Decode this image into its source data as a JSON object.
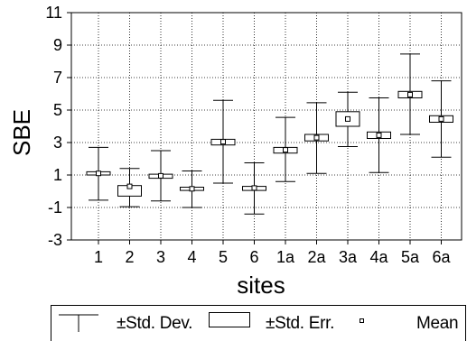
{
  "chart_data": {
    "type": "box",
    "title": "",
    "xlabel": "sites",
    "ylabel": "SBE",
    "ylim": [
      -3,
      11
    ],
    "yticks": [
      -3,
      -1,
      1,
      3,
      5,
      7,
      9,
      11
    ],
    "grid": true,
    "categories": [
      "1",
      "2",
      "3",
      "4",
      "5",
      "6",
      "1a",
      "2a",
      "3a",
      "4a",
      "5a",
      "6a"
    ],
    "series": [
      {
        "name": "Mean",
        "values": [
          1.1,
          0.3,
          0.95,
          0.15,
          3.05,
          0.2,
          2.55,
          3.3,
          4.45,
          3.45,
          5.95,
          4.45
        ]
      },
      {
        "name": "±Std. Err.",
        "low": [
          1.0,
          -0.3,
          0.8,
          0.05,
          2.85,
          0.05,
          2.35,
          3.1,
          4.0,
          3.25,
          5.75,
          4.25
        ],
        "high": [
          1.2,
          0.35,
          1.05,
          0.25,
          3.2,
          0.3,
          2.7,
          3.5,
          4.9,
          3.65,
          6.15,
          4.65
        ]
      },
      {
        "name": "±Std. Dev.",
        "low": [
          -0.55,
          -0.95,
          -0.6,
          -1.0,
          0.5,
          -1.4,
          0.6,
          1.1,
          2.75,
          1.15,
          3.5,
          2.1
        ],
        "high": [
          2.7,
          1.4,
          2.5,
          1.25,
          5.6,
          1.75,
          4.55,
          5.45,
          6.1,
          5.75,
          8.45,
          6.8
        ]
      }
    ]
  },
  "legend": {
    "std_dev_label": "±Std. Dev.",
    "std_err_label": "±Std. Err.",
    "mean_label": "Mean"
  }
}
